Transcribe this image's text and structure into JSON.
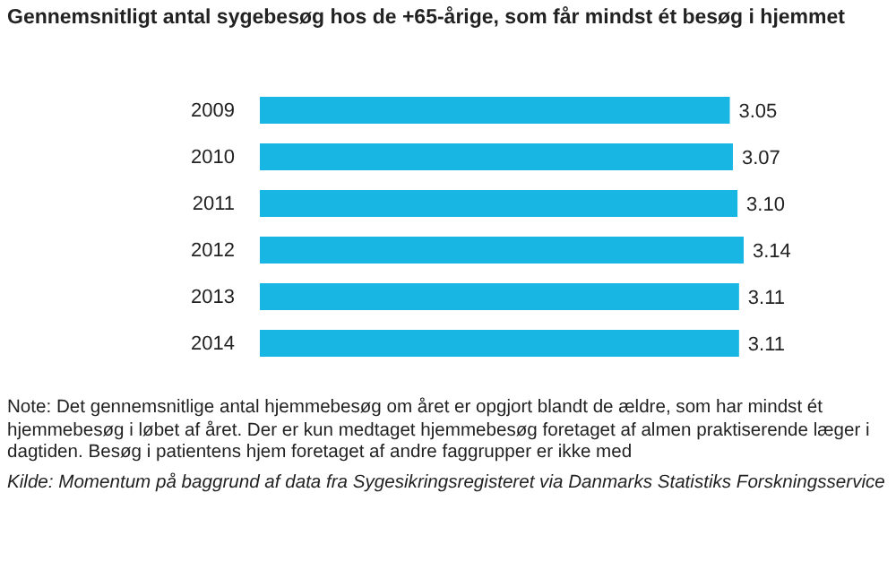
{
  "chart_data": {
    "type": "bar",
    "orientation": "horizontal",
    "title": "Gennemsnitligt antal sygebesøg hos de +65-årige, som får mindst ét besøg i hjemmet",
    "categories": [
      "2009",
      "2010",
      "2011",
      "2012",
      "2013",
      "2014"
    ],
    "values": [
      3.05,
      3.07,
      3.1,
      3.14,
      3.11,
      3.11
    ],
    "value_labels": [
      "3.05",
      "3.07",
      "3.10",
      "3.14",
      "3.11",
      "3.11"
    ],
    "color": "#17b6e3",
    "annotations": [
      "Note: Det gennemsnitlige antal hjemmebesøg om året er opgjort blandt de ældre, som har mindst ét hjemmebesøg i løbet af året. Der er kun medtaget hjemmebesøg foretaget af almen praktiserende læger i dagtiden. Besøg i patientens hjem foretaget af andre faggrupper er ikke med",
      "Kilde: Momentum på baggrund af data fra Sygesikringsregisteret via Danmarks Statistiks Forskningsservice"
    ]
  }
}
